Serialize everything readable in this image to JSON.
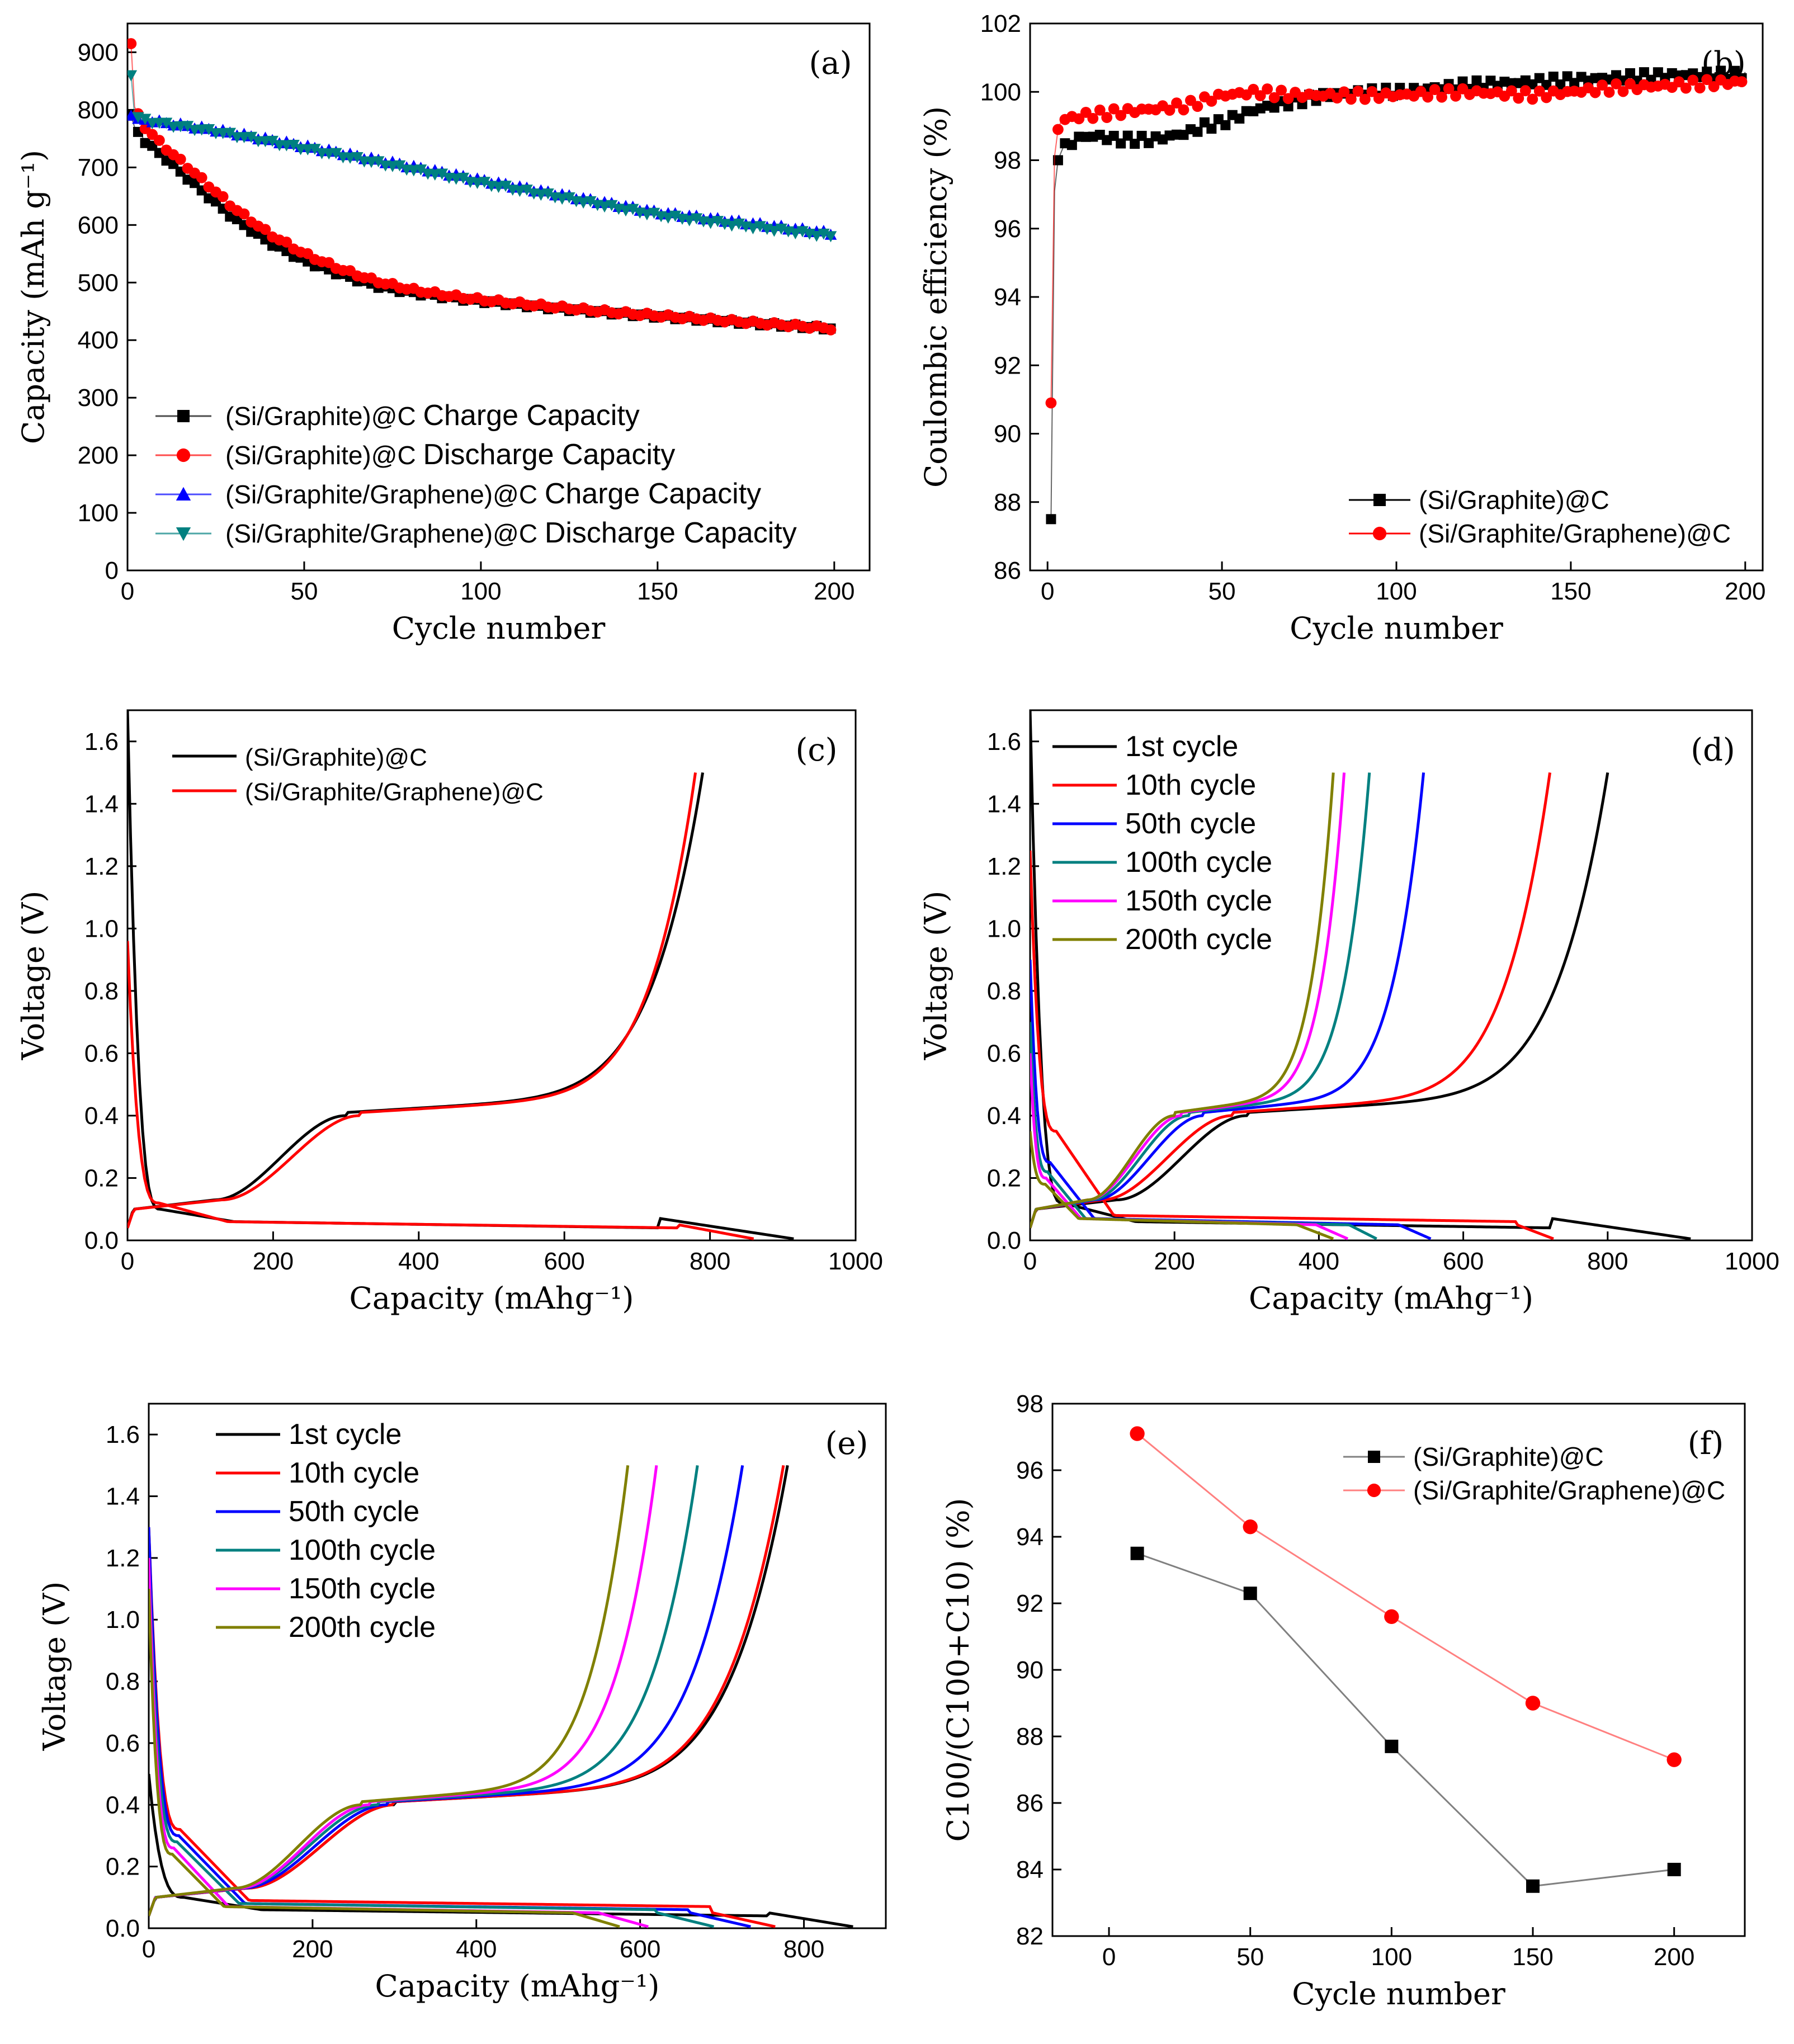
{
  "chart_data": [
    {
      "id": "a",
      "panel_label": "(a)",
      "type": "scatter",
      "xlabel": "Cycle number",
      "ylabel": "Capacity (mAh g⁻¹)",
      "xlim": [
        0,
        210
      ],
      "ylim": [
        0,
        950
      ],
      "xticks": [
        0,
        50,
        100,
        150,
        200
      ],
      "yticks": [
        0,
        100,
        200,
        300,
        400,
        500,
        600,
        700,
        800,
        900
      ],
      "legend_position": "bottom-left",
      "series": [
        {
          "name": "(Si/Graphite)@C Charge Capacity",
          "label_prefix": "(Si/Graphite)@C",
          "label_suffix": "Charge Capacity",
          "color": "#000000",
          "marker": "square",
          "x": [
            1,
            2,
            5,
            10,
            20,
            30,
            40,
            50,
            60,
            70,
            80,
            90,
            100,
            120,
            140,
            160,
            180,
            200
          ],
          "y": [
            790,
            770,
            745,
            720,
            665,
            612,
            570,
            538,
            515,
            495,
            483,
            475,
            468,
            456,
            446,
            437,
            428,
            420
          ]
        },
        {
          "name": "(Si/Graphite)@C Discharge Capacity",
          "label_prefix": "(Si/Graphite)@C",
          "label_suffix": "Discharge Capacity",
          "color": "#ff0000",
          "marker": "circle",
          "x": [
            1,
            2,
            5,
            10,
            20,
            30,
            40,
            50,
            60,
            70,
            80,
            90,
            100,
            120,
            140,
            160,
            180,
            200
          ],
          "y": [
            915,
            805,
            770,
            738,
            685,
            630,
            585,
            550,
            524,
            503,
            488,
            478,
            470,
            458,
            447,
            438,
            429,
            420
          ]
        },
        {
          "name": "(Si/Graphite/Graphene)@C Charge Capacity",
          "label_prefix": "(Si/Graphite/Graphene)@C",
          "label_suffix": "Charge Capacity",
          "color": "#0000ff",
          "marker": "triangle-up",
          "x": [
            1,
            2,
            5,
            10,
            25,
            50,
            75,
            100,
            125,
            150,
            175,
            200
          ],
          "y": [
            790,
            785,
            783,
            778,
            765,
            737,
            708,
            678,
            650,
            622,
            604,
            585
          ]
        },
        {
          "name": "(Si/Graphite/Graphene)@C Discharge Capacity",
          "label_prefix": "(Si/Graphite/Graphene)@C",
          "label_suffix": "Discharge Capacity",
          "color": "#008080",
          "marker": "triangle-down",
          "x": [
            1,
            2,
            5,
            10,
            25,
            50,
            75,
            100,
            125,
            150,
            175,
            200
          ],
          "y": [
            860,
            790,
            782,
            776,
            762,
            733,
            703,
            673,
            645,
            617,
            598,
            580
          ]
        }
      ]
    },
    {
      "id": "b",
      "panel_label": "(b)",
      "type": "scatter",
      "xlabel": "Cycle number",
      "ylabel": "Coulombic efficiency (%)",
      "xlim": [
        -5,
        205
      ],
      "ylim": [
        86,
        102
      ],
      "xticks": [
        0,
        50,
        100,
        150,
        200
      ],
      "yticks": [
        86,
        88,
        90,
        92,
        94,
        96,
        98,
        100,
        102
      ],
      "legend_position": "bottom-right",
      "series": [
        {
          "name": "(Si/Graphite)@C",
          "color": "#000000",
          "marker": "square",
          "x": [
            1,
            2,
            3,
            5,
            10,
            15,
            20,
            25,
            30,
            35,
            40,
            45,
            50,
            55,
            60,
            70,
            80,
            90,
            100,
            120,
            140,
            160,
            180,
            200
          ],
          "y": [
            87.5,
            97.1,
            98.0,
            98.4,
            98.7,
            98.7,
            98.6,
            98.6,
            98.6,
            98.7,
            98.8,
            99.0,
            99.1,
            99.3,
            99.5,
            99.7,
            99.9,
            100.0,
            100.0,
            100.2,
            100.3,
            100.4,
            100.5,
            100.5
          ]
        },
        {
          "name": "(Si/Graphite/Graphene)@C",
          "color": "#ff0000",
          "marker": "circle",
          "x": [
            1,
            2,
            3,
            5,
            10,
            20,
            30,
            40,
            50,
            60,
            70,
            80,
            90,
            100,
            120,
            140,
            160,
            180,
            200
          ],
          "y": [
            90.9,
            98.1,
            98.9,
            99.2,
            99.3,
            99.4,
            99.5,
            99.6,
            99.9,
            100.0,
            99.9,
            99.9,
            99.9,
            99.9,
            100.0,
            99.9,
            100.1,
            100.2,
            100.3
          ]
        }
      ]
    },
    {
      "id": "c",
      "panel_label": "(c)",
      "type": "line",
      "xlabel": "Capacity (mAhg⁻¹)",
      "ylabel": "Voltage (V)",
      "xlim": [
        0,
        1000
      ],
      "ylim": [
        0,
        1.7
      ],
      "xticks": [
        0,
        200,
        400,
        600,
        800,
        1000
      ],
      "yticks": [
        0.0,
        0.2,
        0.4,
        0.6,
        0.8,
        1.0,
        1.2,
        1.4,
        1.6
      ],
      "legend_position": "top-left",
      "series": [
        {
          "name": "(Si/Graphite)@C",
          "color": "#000000",
          "discharge": {
            "cap": 915,
            "v0": 1.7,
            "knee": 0.1,
            "plateau": 0.04,
            "step": 0.07,
            "stepFrac": 0.8
          },
          "charge": {
            "cap": 790,
            "q1": 120,
            "q2": 300,
            "shift": 0
          }
        },
        {
          "name": "(Si/Graphite/Graphene)@C",
          "color": "#ff0000",
          "discharge": {
            "cap": 860,
            "v0": 0.96,
            "knee": 0.12,
            "plateau": 0.04,
            "step": 0.05,
            "stepFrac": 0.88
          },
          "charge": {
            "cap": 780,
            "q1": 120,
            "q2": 300,
            "shift": 20
          }
        }
      ]
    },
    {
      "id": "d",
      "panel_label": "(d)",
      "type": "line",
      "xlabel": "Capacity (mAhg⁻¹)",
      "ylabel": "Voltage (V)",
      "xlim": [
        0,
        1000
      ],
      "ylim": [
        0,
        1.7
      ],
      "xticks": [
        0,
        200,
        400,
        600,
        800,
        1000
      ],
      "yticks": [
        0.0,
        0.2,
        0.4,
        0.6,
        0.8,
        1.0,
        1.2,
        1.4,
        1.6
      ],
      "legend_position": "top-left",
      "series": [
        {
          "name": "1st cycle",
          "color": "#000000",
          "discharge": {
            "cap": 915,
            "v0": 1.7,
            "knee": 0.12,
            "plateau": 0.04,
            "step": 0.07,
            "stepFrac": 0.79
          },
          "charge": {
            "cap": 800,
            "q1": 120,
            "q2": 300,
            "shift": 0
          }
        },
        {
          "name": "10th cycle",
          "color": "#ff0000",
          "discharge": {
            "cap": 725,
            "v0": 1.25,
            "knee": 0.35,
            "plateau": 0.06,
            "step": 0.05,
            "stepFrac": 0.93
          },
          "charge": {
            "cap": 720,
            "q1": 100,
            "q2": 280,
            "shift": 0
          }
        },
        {
          "name": "50th cycle",
          "color": "#0000ff",
          "discharge": {
            "cap": 555,
            "v0": 0.9,
            "knee": 0.25,
            "plateau": 0.05,
            "step": 0.05,
            "stepFrac": 0.92
          },
          "charge": {
            "cap": 545,
            "q1": 90,
            "q2": 240,
            "shift": 0
          }
        },
        {
          "name": "100th cycle",
          "color": "#008080",
          "discharge": {
            "cap": 480,
            "v0": 0.7,
            "knee": 0.22,
            "plateau": 0.05,
            "step": 0.05,
            "stepFrac": 0.92
          },
          "charge": {
            "cap": 470,
            "q1": 85,
            "q2": 220,
            "shift": 0
          }
        },
        {
          "name": "150th cycle",
          "color": "#ff00ff",
          "discharge": {
            "cap": 440,
            "v0": 0.6,
            "knee": 0.2,
            "plateau": 0.05,
            "step": 0.05,
            "stepFrac": 0.9
          },
          "charge": {
            "cap": 435,
            "q1": 80,
            "q2": 210,
            "shift": 0
          }
        },
        {
          "name": "200th cycle",
          "color": "#808000",
          "discharge": {
            "cap": 420,
            "v0": 0.35,
            "knee": 0.18,
            "plateau": 0.05,
            "step": 0.05,
            "stepFrac": 0.88
          },
          "charge": {
            "cap": 420,
            "q1": 80,
            "q2": 200,
            "shift": 0
          }
        }
      ]
    },
    {
      "id": "e",
      "panel_label": "(e)",
      "type": "line",
      "xlabel": "Capacity (mAhg⁻¹)",
      "ylabel": "Voltage (V)",
      "xlim": [
        0,
        900
      ],
      "ylim": [
        0,
        1.7
      ],
      "xticks": [
        0,
        200,
        400,
        600,
        800
      ],
      "yticks": [
        0.0,
        0.2,
        0.4,
        0.6,
        0.8,
        1.0,
        1.2,
        1.4,
        1.6
      ],
      "legend_position": "top-left",
      "series": [
        {
          "name": "1st cycle",
          "color": "#000000",
          "discharge": {
            "cap": 860,
            "v0": 0.5,
            "knee": 0.1,
            "plateau": 0.04,
            "step": 0.05,
            "stepFrac": 0.88
          },
          "charge": {
            "cap": 780,
            "q1": 120,
            "q2": 300,
            "shift": 0
          }
        },
        {
          "name": "10th cycle",
          "color": "#ff0000",
          "discharge": {
            "cap": 765,
            "v0": 1.3,
            "knee": 0.32,
            "plateau": 0.07,
            "step": 0.05,
            "stepFrac": 0.9
          },
          "charge": {
            "cap": 775,
            "q1": 120,
            "q2": 300,
            "shift": 0
          }
        },
        {
          "name": "50th cycle",
          "color": "#0000ff",
          "discharge": {
            "cap": 735,
            "v0": 1.3,
            "knee": 0.3,
            "plateau": 0.06,
            "step": 0.05,
            "stepFrac": 0.9
          },
          "charge": {
            "cap": 725,
            "q1": 115,
            "q2": 290,
            "shift": 0
          }
        },
        {
          "name": "100th cycle",
          "color": "#008080",
          "discharge": {
            "cap": 690,
            "v0": 1.2,
            "knee": 0.28,
            "plateau": 0.06,
            "step": 0.05,
            "stepFrac": 0.9
          },
          "charge": {
            "cap": 670,
            "q1": 110,
            "q2": 280,
            "shift": 0
          }
        },
        {
          "name": "150th cycle",
          "color": "#ff00ff",
          "discharge": {
            "cap": 610,
            "v0": 1.2,
            "knee": 0.26,
            "plateau": 0.05,
            "step": 0.05,
            "stepFrac": 0.9
          },
          "charge": {
            "cap": 620,
            "q1": 110,
            "q2": 270,
            "shift": 0
          }
        },
        {
          "name": "200th cycle",
          "color": "#808000",
          "discharge": {
            "cap": 575,
            "v0": 1.1,
            "knee": 0.24,
            "plateau": 0.05,
            "step": 0.05,
            "stepFrac": 0.9
          },
          "charge": {
            "cap": 585,
            "q1": 105,
            "q2": 260,
            "shift": 0
          }
        }
      ]
    },
    {
      "id": "f",
      "panel_label": "(f)",
      "type": "line",
      "xlabel": "Cycle number",
      "ylabel": "C100/(C100+C10) (%)",
      "xlim": [
        -20,
        225
      ],
      "ylim": [
        82,
        98
      ],
      "xticks": [
        0,
        50,
        100,
        150,
        200
      ],
      "yticks": [
        82,
        84,
        86,
        88,
        90,
        92,
        94,
        96,
        98
      ],
      "legend_position": "top-right",
      "series": [
        {
          "name": "(Si/Graphite)@C",
          "color": "#000000",
          "line_color": "#808080",
          "marker": "square",
          "x": [
            10,
            50,
            100,
            150,
            200
          ],
          "y": [
            93.5,
            92.3,
            87.7,
            83.5,
            84.0
          ]
        },
        {
          "name": "(Si/Graphite/Graphene)@C",
          "color": "#ff0000",
          "line_color": "#ff8080",
          "marker": "circle",
          "x": [
            10,
            50,
            100,
            150,
            200
          ],
          "y": [
            97.1,
            94.3,
            91.6,
            89.0,
            87.3
          ]
        }
      ]
    }
  ]
}
